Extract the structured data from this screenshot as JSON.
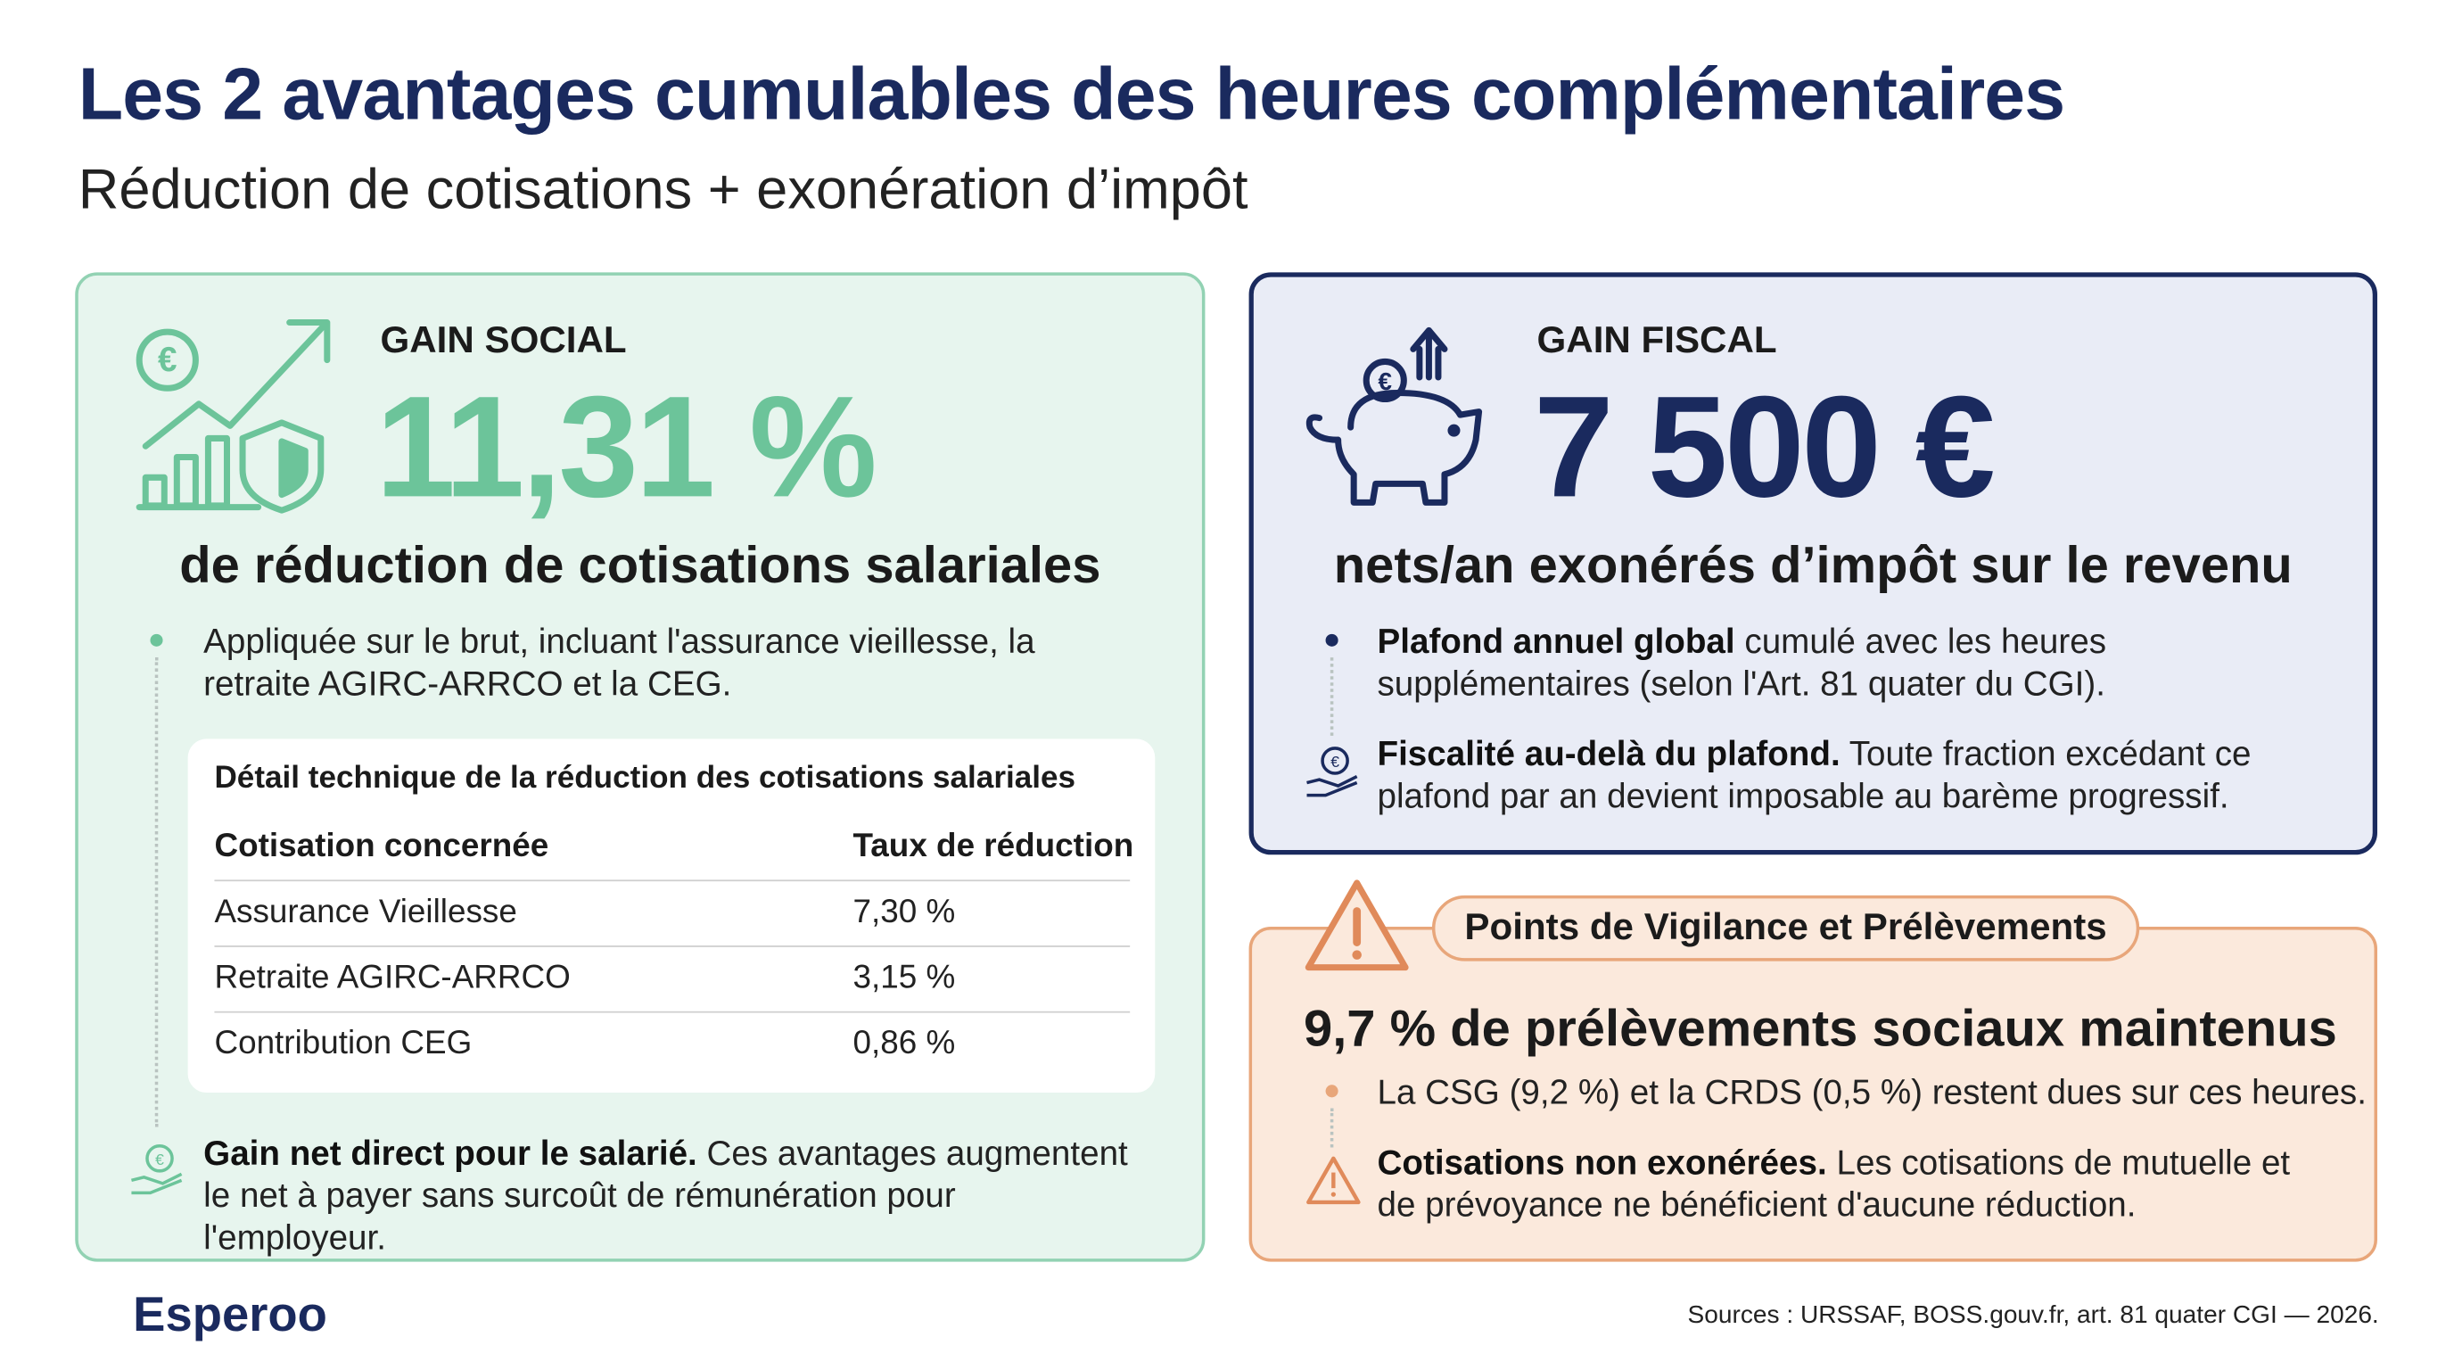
{
  "header": {
    "title": "Les 2 avantages cumulables des heures complémentaires",
    "subtitle": "Réduction de cotisations + exonération d’impôt"
  },
  "social": {
    "label": "GAIN SOCIAL",
    "figure": "11,31 %",
    "lead": "de réduction de cotisations salariales",
    "bullets": [
      {
        "text": "Appliquée sur le brut, incluant l'assurance vieillesse, la retraite AGIRC-ARRCO et la CEG."
      },
      {
        "bold": "Gain net direct pour le salarié.",
        "text": "Ces avantages augmentent le net à payer sans surcoût de rémunération pour l'employeur."
      }
    ],
    "table": {
      "title": "Détail technique de la réduction des cotisations salariales",
      "header": [
        "Cotisation concernée",
        "Taux de réduction"
      ],
      "rows": [
        [
          "Assurance Vieillesse",
          "7,30 %"
        ],
        [
          "Retraite AGIRC-ARRCO",
          "3,15 %"
        ],
        [
          "Contribution CEG",
          "0,86 %"
        ]
      ]
    }
  },
  "fiscal": {
    "label": "GAIN FISCAL",
    "figure": "7 500 €",
    "lead": "nets/an exonérés d’impôt sur le revenu",
    "bullets": [
      {
        "bold": "Plafond annuel global",
        "text": "cumulé avec les heures supplémentaires (selon l'Art. 81 quater du CGI)."
      },
      {
        "bold": "Fiscalité au-delà du plafond.",
        "text": "Toute fraction excédant ce plafond par an devient imposable au barème progressif."
      }
    ]
  },
  "vigilance": {
    "label": "Points de Vigilance et Prélèvements",
    "lead": "9,7 % de prélèvements sociaux maintenus",
    "bullets": [
      {
        "text": "La CSG (9,2 %) et la CRDS (0,5 %) restent dues sur ces heures."
      },
      {
        "bold": "Cotisations non exonérées.",
        "text": "Les cotisations de mutuelle et de prévoyance ne bénéficient d'aucune réduction."
      }
    ]
  },
  "footer": {
    "brand": "Esperoo",
    "sources": "Sources : URSSAF, BOSS.gouv.fr, art. 81 quater CGI — 2026."
  }
}
